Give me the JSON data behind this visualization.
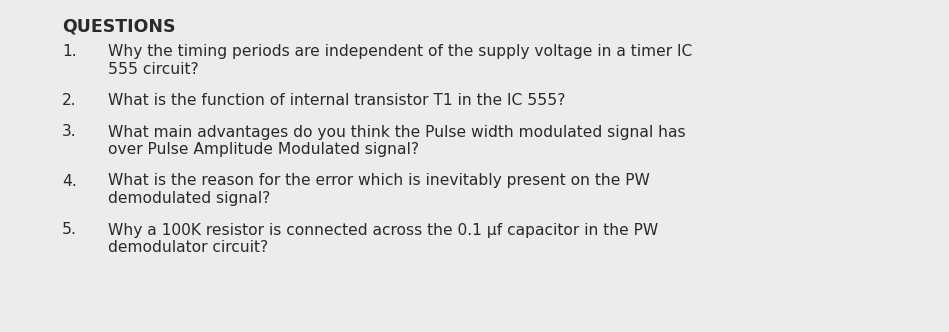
{
  "background_color": "#eeecea",
  "title": "QUESTIONS",
  "title_fontsize": 12.5,
  "text_color": "#2a2a2a",
  "font_family": "DejaVu Sans",
  "questions": [
    {
      "number": "1.",
      "lines": [
        "Why the timing periods are independent of the supply voltage in a timer IC",
        "555 circuit?"
      ]
    },
    {
      "number": "2.",
      "lines": [
        "What is the function of internal transistor T1 in the IC 555?"
      ]
    },
    {
      "number": "3.",
      "lines": [
        "What main advantages do you think the Pulse width modulated signal has",
        "over Pulse Amplitude Modulated signal?"
      ]
    },
    {
      "number": "4.",
      "lines": [
        "What is the reason for the error which is inevitably present on the PW",
        "demodulated signal?"
      ]
    },
    {
      "number": "5.",
      "lines": [
        "Why a 100K resistor is connected across the 0.1 µf capacitor in the PW",
        "demodulator circuit?"
      ]
    }
  ],
  "base_fontsize": 11.2,
  "fig_width": 9.49,
  "fig_height": 3.32,
  "dpi": 100
}
